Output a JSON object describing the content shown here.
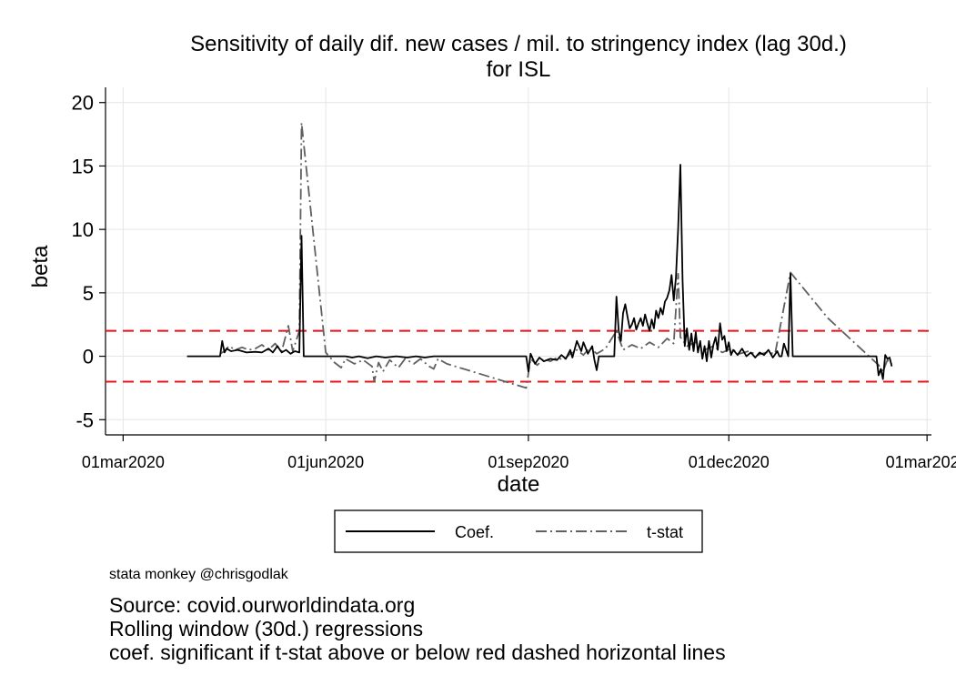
{
  "chart_data": {
    "type": "line",
    "title": "Sensitivity of daily dif. new cases / mil. to stringency index (lag 30d.)",
    "subtitle": "for ISL",
    "xlabel": "date",
    "ylabel": "beta",
    "xlim": [
      "2020-02-22",
      "2021-03-03"
    ],
    "ylim": [
      -6.2,
      21.2
    ],
    "yticks": [
      20,
      15,
      10,
      5,
      0,
      -5
    ],
    "ytick_labels": [
      "20",
      "15",
      "10",
      "5",
      "0",
      "-5"
    ],
    "xticks": [
      "2020-03-01",
      "2020-06-01",
      "2020-09-01",
      "2020-12-01",
      "2021-03-01"
    ],
    "xtick_labels": [
      "01mar2020",
      "01jun2020",
      "01sep2020",
      "01dec2020",
      "01mar2021"
    ],
    "grid": true,
    "reference_lines": [
      {
        "y": 2,
        "color": "#e8141c",
        "style": "dashed"
      },
      {
        "y": -2,
        "color": "#e8141c",
        "style": "dashed"
      }
    ],
    "legend": {
      "position": "bottom",
      "entries": [
        "Coef.",
        "t-stat"
      ]
    },
    "series": [
      {
        "name": "Coef.",
        "color": "#000000",
        "style": "solid",
        "points": [
          [
            "2020-03-30",
            0
          ],
          [
            "2020-04-14",
            0
          ],
          [
            "2020-04-15",
            1.2
          ],
          [
            "2020-04-16",
            0.3
          ],
          [
            "2020-04-17",
            0.6
          ],
          [
            "2020-04-19",
            0.4
          ],
          [
            "2020-04-22",
            0.5
          ],
          [
            "2020-04-26",
            0.3
          ],
          [
            "2020-04-30",
            0.35
          ],
          [
            "2020-05-03",
            0.3
          ],
          [
            "2020-05-06",
            0.6
          ],
          [
            "2020-05-08",
            0.3
          ],
          [
            "2020-05-10",
            0.8
          ],
          [
            "2020-05-12",
            0.3
          ],
          [
            "2020-05-14",
            0.5
          ],
          [
            "2020-05-16",
            0.2
          ],
          [
            "2020-05-18",
            0.4
          ],
          [
            "2020-05-20",
            0.3
          ],
          [
            "2020-05-21",
            9.5
          ],
          [
            "2020-05-22",
            0
          ],
          [
            "2020-06-10",
            0
          ],
          [
            "2020-06-13",
            -0.1
          ],
          [
            "2020-06-16",
            0
          ],
          [
            "2020-06-20",
            -0.15
          ],
          [
            "2020-06-24",
            0
          ],
          [
            "2020-06-28",
            -0.1
          ],
          [
            "2020-07-03",
            0
          ],
          [
            "2020-07-08",
            -0.1
          ],
          [
            "2020-07-12",
            0
          ],
          [
            "2020-07-16",
            -0.1
          ],
          [
            "2020-07-20",
            0
          ],
          [
            "2020-07-26",
            0
          ],
          [
            "2020-08-31",
            0
          ],
          [
            "2020-09-01",
            -1.2
          ],
          [
            "2020-09-02",
            0.2
          ],
          [
            "2020-09-04",
            -0.6
          ],
          [
            "2020-09-06",
            -0.1
          ],
          [
            "2020-09-08",
            -0.4
          ],
          [
            "2020-09-11",
            -0.2
          ],
          [
            "2020-09-14",
            -0.3
          ],
          [
            "2020-09-16",
            0.1
          ],
          [
            "2020-09-18",
            -0.2
          ],
          [
            "2020-09-20",
            0.5
          ],
          [
            "2020-09-21",
            -0.1
          ],
          [
            "2020-09-23",
            1.2
          ],
          [
            "2020-09-25",
            0.4
          ],
          [
            "2020-09-26",
            1.1
          ],
          [
            "2020-09-28",
            0.2
          ],
          [
            "2020-09-30",
            0.8
          ],
          [
            "2020-10-01",
            -0.3
          ],
          [
            "2020-10-02",
            -1.1
          ],
          [
            "2020-10-03",
            0
          ],
          [
            "2020-10-10",
            0
          ],
          [
            "2020-10-11",
            4.7
          ],
          [
            "2020-10-12",
            2.0
          ],
          [
            "2020-10-13",
            1.2
          ],
          [
            "2020-10-14",
            3.4
          ],
          [
            "2020-10-15",
            4.1
          ],
          [
            "2020-10-16",
            3.1
          ],
          [
            "2020-10-17",
            2.2
          ],
          [
            "2020-10-18",
            2.5
          ],
          [
            "2020-10-19",
            3.0
          ],
          [
            "2020-10-20",
            2.1
          ],
          [
            "2020-10-21",
            2.6
          ],
          [
            "2020-10-22",
            3.0
          ],
          [
            "2020-10-23",
            2.4
          ],
          [
            "2020-10-24",
            3.3
          ],
          [
            "2020-10-25",
            2.6
          ],
          [
            "2020-10-26",
            2.0
          ],
          [
            "2020-10-27",
            2.9
          ],
          [
            "2020-10-28",
            2.2
          ],
          [
            "2020-10-29",
            3.6
          ],
          [
            "2020-10-30",
            3.0
          ],
          [
            "2020-10-31",
            3.8
          ],
          [
            "2020-11-01",
            3.3
          ],
          [
            "2020-11-02",
            4.3
          ],
          [
            "2020-11-03",
            4.6
          ],
          [
            "2020-11-04",
            5.2
          ],
          [
            "2020-11-05",
            6.4
          ],
          [
            "2020-11-06",
            4.4
          ],
          [
            "2020-11-07",
            6.2
          ],
          [
            "2020-11-08",
            10.0
          ],
          [
            "2020-11-09",
            15.1
          ],
          [
            "2020-11-10",
            6.0
          ],
          [
            "2020-11-11",
            0.8
          ],
          [
            "2020-11-12",
            2.2
          ],
          [
            "2020-11-13",
            0.5
          ],
          [
            "2020-11-14",
            1.8
          ],
          [
            "2020-11-15",
            0.4
          ],
          [
            "2020-11-16",
            1.9
          ],
          [
            "2020-11-17",
            0.3
          ],
          [
            "2020-11-18",
            1.2
          ],
          [
            "2020-11-19",
            -0.2
          ],
          [
            "2020-11-20",
            0.8
          ],
          [
            "2020-11-21",
            -0.4
          ],
          [
            "2020-11-22",
            1.2
          ],
          [
            "2020-11-23",
            -0.1
          ],
          [
            "2020-11-24",
            0.9
          ],
          [
            "2020-11-25",
            1.5
          ],
          [
            "2020-11-26",
            0.5
          ],
          [
            "2020-11-27",
            2.6
          ],
          [
            "2020-11-28",
            1.3
          ],
          [
            "2020-11-29",
            1.6
          ],
          [
            "2020-11-30",
            0.4
          ],
          [
            "2020-12-01",
            1.1
          ],
          [
            "2020-12-02",
            0.1
          ],
          [
            "2020-12-03",
            0.5
          ],
          [
            "2020-12-05",
            0.1
          ],
          [
            "2020-12-07",
            0.6
          ],
          [
            "2020-12-09",
            0.0
          ],
          [
            "2020-12-11",
            0.3
          ],
          [
            "2020-12-13",
            -0.1
          ],
          [
            "2020-12-15",
            0.3
          ],
          [
            "2020-12-17",
            0.1
          ],
          [
            "2020-12-19",
            0.5
          ],
          [
            "2020-12-21",
            -0.1
          ],
          [
            "2020-12-23",
            0.4
          ],
          [
            "2020-12-24",
            0
          ],
          [
            "2020-12-25",
            0
          ],
          [
            "2020-12-26",
            1.0
          ],
          [
            "2020-12-27",
            0.5
          ],
          [
            "2020-12-28",
            0
          ],
          [
            "2020-12-29",
            6.5
          ],
          [
            "2020-12-30",
            0
          ],
          [
            "2021-02-06",
            0
          ],
          [
            "2021-02-07",
            -1.5
          ],
          [
            "2021-02-08",
            -1.0
          ],
          [
            "2021-02-09",
            -1.8
          ],
          [
            "2021-02-10",
            0.1
          ],
          [
            "2021-02-11",
            -0.2
          ],
          [
            "2021-02-12",
            -0.1
          ],
          [
            "2021-02-13",
            -0.8
          ]
        ]
      },
      {
        "name": "t-stat",
        "color": "#606060",
        "style": "dashdot",
        "points": [
          [
            "2020-04-14",
            0.2
          ],
          [
            "2020-04-16",
            0.4
          ],
          [
            "2020-04-18",
            0.8
          ],
          [
            "2020-04-21",
            0.5
          ],
          [
            "2020-04-24",
            0.7
          ],
          [
            "2020-04-27",
            0.5
          ],
          [
            "2020-04-30",
            0.6
          ],
          [
            "2020-05-03",
            0.9
          ],
          [
            "2020-05-06",
            0.5
          ],
          [
            "2020-05-09",
            1.0
          ],
          [
            "2020-05-12",
            0.4
          ],
          [
            "2020-05-15",
            2.4
          ],
          [
            "2020-05-17",
            0.4
          ],
          [
            "2020-05-20",
            2.0
          ],
          [
            "2020-05-21",
            18.4
          ],
          [
            "2020-06-01",
            0.3
          ],
          [
            "2020-06-05",
            -0.5
          ],
          [
            "2020-06-08",
            -0.9
          ],
          [
            "2020-06-10",
            -0.2
          ],
          [
            "2020-06-14",
            -0.6
          ],
          [
            "2020-06-18",
            -0.3
          ],
          [
            "2020-06-22",
            -0.8
          ],
          [
            "2020-06-23",
            -2.0
          ],
          [
            "2020-06-25",
            -0.5
          ],
          [
            "2020-06-27",
            -1.2
          ],
          [
            "2020-06-30",
            -0.3
          ],
          [
            "2020-07-04",
            -0.9
          ],
          [
            "2020-07-07",
            -0.2
          ],
          [
            "2020-07-11",
            -0.6
          ],
          [
            "2020-07-14",
            -0.2
          ],
          [
            "2020-07-18",
            -0.8
          ],
          [
            "2020-07-20",
            -1.0
          ],
          [
            "2020-07-22",
            -0.2
          ],
          [
            "2020-07-26",
            -0.6
          ],
          [
            "2020-08-31",
            -2.5
          ],
          [
            "2020-09-02",
            -0.2
          ],
          [
            "2020-09-05",
            -0.7
          ],
          [
            "2020-09-08",
            -0.2
          ],
          [
            "2020-09-11",
            -0.4
          ],
          [
            "2020-09-14",
            -0.1
          ],
          [
            "2020-09-17",
            -0.3
          ],
          [
            "2020-09-20",
            0.2
          ],
          [
            "2020-09-23",
            0.5
          ],
          [
            "2020-09-26",
            0.1
          ],
          [
            "2020-09-29",
            0.7
          ],
          [
            "2020-10-02",
            0.2
          ],
          [
            "2020-10-06",
            0.6
          ],
          [
            "2020-10-11",
            2.0
          ],
          [
            "2020-10-14",
            0.5
          ],
          [
            "2020-10-18",
            0.9
          ],
          [
            "2020-10-22",
            0.6
          ],
          [
            "2020-10-26",
            1.1
          ],
          [
            "2020-10-30",
            0.7
          ],
          [
            "2020-11-03",
            1.4
          ],
          [
            "2020-11-06",
            1.0
          ],
          [
            "2020-11-08",
            6.5
          ],
          [
            "2020-11-09",
            1.5
          ],
          [
            "2020-11-12",
            0.8
          ],
          [
            "2020-11-16",
            1.1
          ],
          [
            "2020-11-20",
            0.5
          ],
          [
            "2020-11-24",
            0.8
          ],
          [
            "2020-11-28",
            0.3
          ],
          [
            "2020-12-02",
            0.6
          ],
          [
            "2020-12-06",
            0.2
          ],
          [
            "2020-12-10",
            0.4
          ],
          [
            "2020-12-14",
            0.1
          ],
          [
            "2020-12-18",
            0.3
          ],
          [
            "2020-12-22",
            0.2
          ],
          [
            "2020-12-29",
            6.6
          ],
          [
            "2021-01-15",
            3.0
          ],
          [
            "2021-02-07",
            -0.7
          ],
          [
            "2021-02-09",
            -1.2
          ],
          [
            "2021-02-11",
            -0.3
          ],
          [
            "2021-02-13",
            -0.6
          ]
        ]
      }
    ]
  },
  "notes": {
    "credit": "stata monkey @chrisgodlak",
    "lines": [
      "Source: covid.ourworldindata.org",
      "Rolling window (30d.) regressions",
      "coef. significant if t-stat above or below red dashed horizontal lines"
    ]
  }
}
